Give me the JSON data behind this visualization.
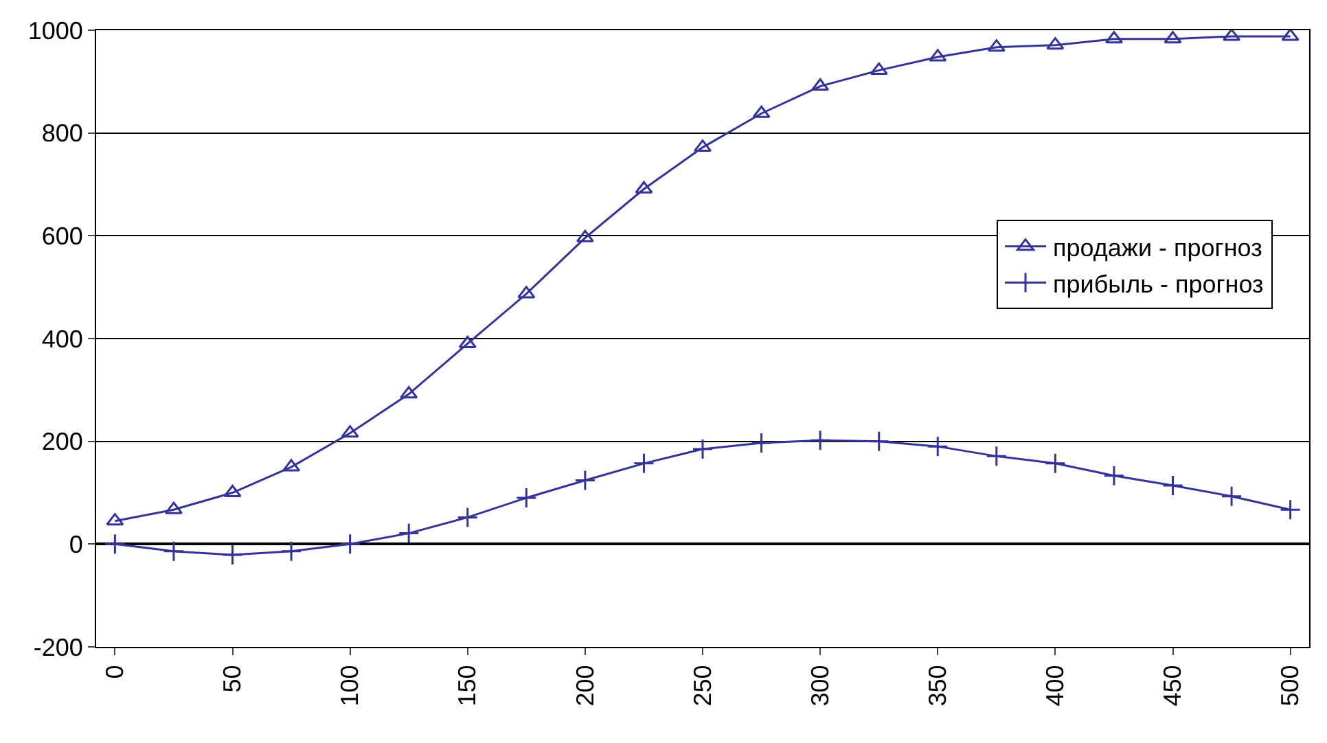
{
  "chart_data": {
    "type": "line",
    "x": [
      0,
      25,
      50,
      75,
      100,
      125,
      150,
      175,
      200,
      225,
      250,
      275,
      300,
      325,
      350,
      375,
      400,
      425,
      450,
      475,
      500
    ],
    "xlim": [
      -8,
      508
    ],
    "xticks": [
      0,
      50,
      100,
      150,
      200,
      250,
      300,
      350,
      400,
      450,
      500
    ],
    "ylim": [
      -200,
      1000
    ],
    "yticks": [
      -200,
      0,
      200,
      400,
      600,
      800,
      1000
    ],
    "grid": "y",
    "legend": "right",
    "series": [
      {
        "name": "продажи - прогноз",
        "color": "#333399",
        "marker": "triangle",
        "values": [
          45,
          67,
          100,
          150,
          216,
          292,
          390,
          487,
          596,
          691,
          772,
          838,
          891,
          922,
          948,
          967,
          971,
          983,
          983,
          988,
          988
        ]
      },
      {
        "name": "прибыль - прогноз",
        "color": "#333399",
        "marker": "cross",
        "values": [
          0,
          -14,
          -21,
          -14,
          0,
          21,
          52,
          90,
          124,
          157,
          185,
          197,
          202,
          200,
          190,
          171,
          157,
          133,
          114,
          93,
          67
        ]
      }
    ]
  }
}
